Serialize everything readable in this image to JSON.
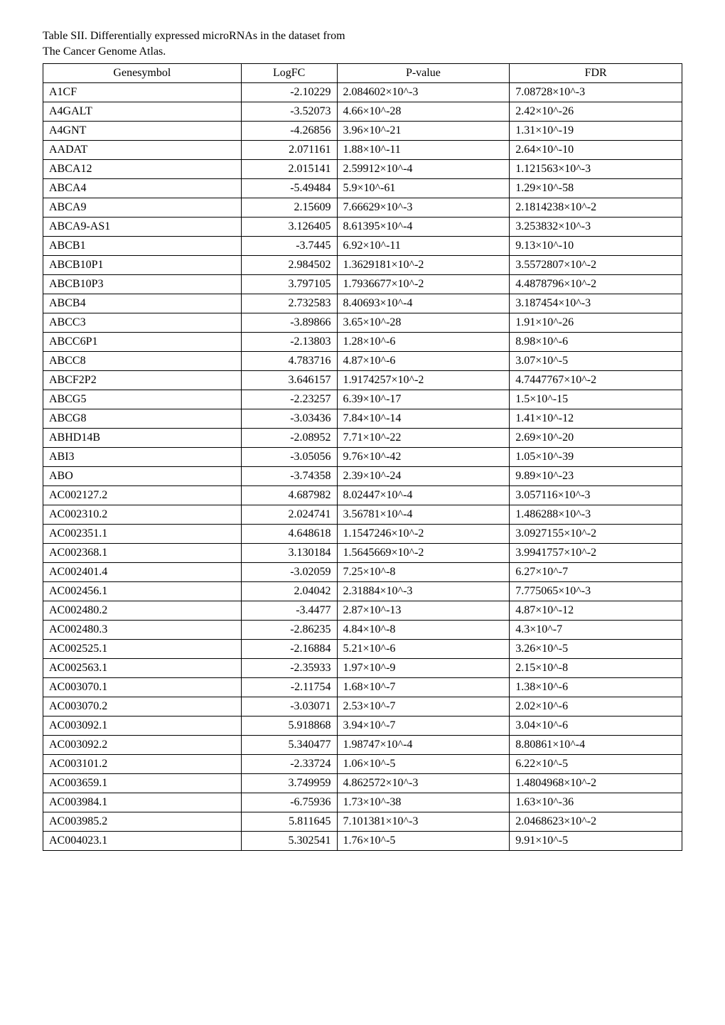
{
  "caption_line1": "Table SII. Differentially expressed microRNAs in the dataset from",
  "caption_line2": "The Cancer Genome Atlas.",
  "headers": [
    "Genesymbol",
    "LogFC",
    "P-value",
    "FDR"
  ],
  "rows": [
    [
      "A1CF",
      "-2.10229",
      "2.084602×10^-3",
      "7.08728×10^-3"
    ],
    [
      "A4GALT",
      "-3.52073",
      "4.66×10^-28",
      "2.42×10^-26"
    ],
    [
      "A4GNT",
      "-4.26856",
      "3.96×10^-21",
      "1.31×10^-19"
    ],
    [
      "AADAT",
      "2.071161",
      "1.88×10^-11",
      "2.64×10^-10"
    ],
    [
      "ABCA12",
      "2.015141",
      "2.59912×10^-4",
      "1.121563×10^-3"
    ],
    [
      "ABCA4",
      "-5.49484",
      "5.9×10^-61",
      "1.29×10^-58"
    ],
    [
      "ABCA9",
      "2.15609",
      "7.66629×10^-3",
      "2.1814238×10^-2"
    ],
    [
      "ABCA9-AS1",
      "3.126405",
      "8.61395×10^-4",
      "3.253832×10^-3"
    ],
    [
      "ABCB1",
      "-3.7445",
      "6.92×10^-11",
      "9.13×10^-10"
    ],
    [
      "ABCB10P1",
      "2.984502",
      "1.3629181×10^-2",
      "3.5572807×10^-2"
    ],
    [
      "ABCB10P3",
      "3.797105",
      "1.7936677×10^-2",
      "4.4878796×10^-2"
    ],
    [
      "ABCB4",
      "2.732583",
      "8.40693×10^-4",
      "3.187454×10^-3"
    ],
    [
      "ABCC3",
      "-3.89866",
      "3.65×10^-28",
      "1.91×10^-26"
    ],
    [
      "ABCC6P1",
      "-2.13803",
      "1.28×10^-6",
      "8.98×10^-6"
    ],
    [
      "ABCC8",
      "4.783716",
      "4.87×10^-6",
      "3.07×10^-5"
    ],
    [
      "ABCF2P2",
      "3.646157",
      "1.9174257×10^-2",
      "4.7447767×10^-2"
    ],
    [
      "ABCG5",
      "-2.23257",
      "6.39×10^-17",
      "1.5×10^-15"
    ],
    [
      "ABCG8",
      "-3.03436",
      "7.84×10^-14",
      "1.41×10^-12"
    ],
    [
      "ABHD14B",
      "-2.08952",
      "7.71×10^-22",
      "2.69×10^-20"
    ],
    [
      "ABI3",
      "-3.05056",
      "9.76×10^-42",
      "1.05×10^-39"
    ],
    [
      "ABO",
      "-3.74358",
      "2.39×10^-24",
      "9.89×10^-23"
    ],
    [
      "AC002127.2",
      "4.687982",
      "8.02447×10^-4",
      "3.057116×10^-3"
    ],
    [
      "AC002310.2",
      "2.024741",
      "3.56781×10^-4",
      "1.486288×10^-3"
    ],
    [
      "AC002351.1",
      "4.648618",
      "1.1547246×10^-2",
      "3.0927155×10^-2"
    ],
    [
      "AC002368.1",
      "3.130184",
      "1.5645669×10^-2",
      "3.9941757×10^-2"
    ],
    [
      "AC002401.4",
      "-3.02059",
      "7.25×10^-8",
      "6.27×10^-7"
    ],
    [
      "AC002456.1",
      "2.04042",
      "2.31884×10^-3",
      "7.775065×10^-3"
    ],
    [
      "AC002480.2",
      "-3.4477",
      "2.87×10^-13",
      "4.87×10^-12"
    ],
    [
      "AC002480.3",
      "-2.86235",
      "4.84×10^-8",
      "4.3×10^-7"
    ],
    [
      "AC002525.1",
      "-2.16884",
      "5.21×10^-6",
      "3.26×10^-5"
    ],
    [
      "AC002563.1",
      "-2.35933",
      "1.97×10^-9",
      "2.15×10^-8"
    ],
    [
      "AC003070.1",
      "-2.11754",
      "1.68×10^-7",
      "1.38×10^-6"
    ],
    [
      "AC003070.2",
      "-3.03071",
      "2.53×10^-7",
      "2.02×10^-6"
    ],
    [
      "AC003092.1",
      "5.918868",
      "3.94×10^-7",
      "3.04×10^-6"
    ],
    [
      "AC003092.2",
      "5.340477",
      "1.98747×10^-4",
      "8.80861×10^-4"
    ],
    [
      "AC003101.2",
      "-2.33724",
      "1.06×10^-5",
      "6.22×10^-5"
    ],
    [
      "AC003659.1",
      "3.749959",
      "4.862572×10^-3",
      "1.4804968×10^-2"
    ],
    [
      "AC003984.1",
      "-6.75936",
      "1.73×10^-38",
      "1.63×10^-36"
    ],
    [
      "AC003985.2",
      "5.811645",
      "7.101381×10^-3",
      "2.0468623×10^-2"
    ],
    [
      "AC004023.1",
      "5.302541",
      "1.76×10^-5",
      "9.91×10^-5"
    ]
  ]
}
